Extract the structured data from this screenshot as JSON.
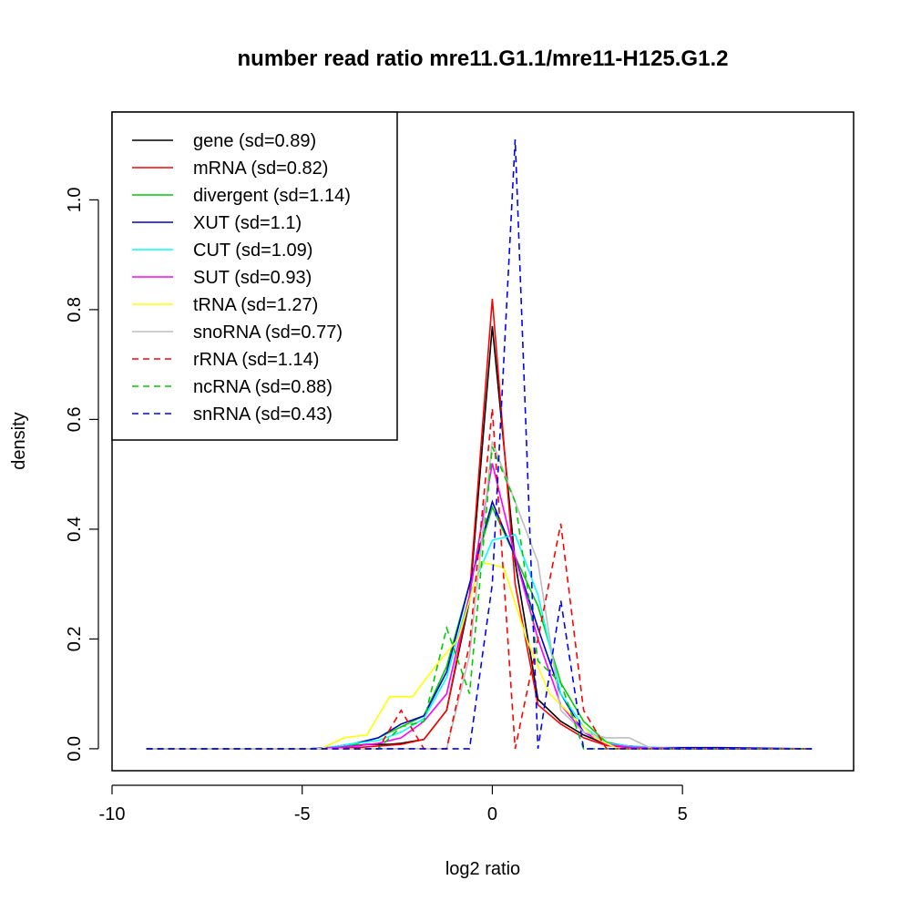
{
  "chart_data": {
    "type": "line",
    "title": "number read ratio mre11.G1.1/mre11-H125.G1.2",
    "xlabel": "log2 ratio",
    "ylabel": "density",
    "xlim": [
      -10,
      9.5
    ],
    "ylim": [
      -0.04,
      1.16
    ],
    "x_ticks": [
      -10,
      -5,
      0,
      5
    ],
    "x_tick_labels": [
      "-10",
      "-5",
      "0",
      "5"
    ],
    "y_ticks": [
      0.0,
      0.2,
      0.4,
      0.6,
      0.8,
      1.0
    ],
    "y_tick_labels": [
      "0.0",
      "0.2",
      "0.4",
      "0.6",
      "0.8",
      "1.0"
    ],
    "legend_position": "top-left",
    "series": [
      {
        "name": "gene (sd=0.89)",
        "color": "#000000",
        "dash": "solid",
        "points": [
          [
            -9.1,
            0
          ],
          [
            -4.5,
            0
          ],
          [
            -3.9,
            0.003
          ],
          [
            -3.3,
            0.008
          ],
          [
            -2.7,
            0.008
          ],
          [
            -2.4,
            0.01
          ],
          [
            -1.8,
            0.017
          ],
          [
            -1.2,
            0.07
          ],
          [
            -0.6,
            0.27
          ],
          [
            0,
            0.77
          ],
          [
            0.6,
            0.34
          ],
          [
            1.2,
            0.09
          ],
          [
            1.8,
            0.05
          ],
          [
            2.4,
            0.025
          ],
          [
            3.0,
            0.008
          ],
          [
            3.6,
            0.005
          ],
          [
            4.2,
            0.002
          ],
          [
            5.0,
            0
          ],
          [
            8.4,
            0
          ]
        ]
      },
      {
        "name": "mRNA (sd=0.82)",
        "color": "#ff0000",
        "dash": "solid",
        "points": [
          [
            -9.1,
            0
          ],
          [
            -4.5,
            0
          ],
          [
            -3.6,
            0.002
          ],
          [
            -3.0,
            0.005
          ],
          [
            -2.4,
            0.008
          ],
          [
            -1.8,
            0.017
          ],
          [
            -1.2,
            0.07
          ],
          [
            -0.6,
            0.28
          ],
          [
            0,
            0.82
          ],
          [
            0.6,
            0.3
          ],
          [
            1.2,
            0.08
          ],
          [
            1.8,
            0.045
          ],
          [
            2.4,
            0.02
          ],
          [
            3.0,
            0.006
          ],
          [
            3.6,
            0.002
          ],
          [
            5.0,
            0
          ],
          [
            8.4,
            0
          ]
        ]
      },
      {
        "name": "divergent (sd=1.14)",
        "color": "#00cc00",
        "dash": "solid",
        "points": [
          [
            -9.1,
            0
          ],
          [
            -4.8,
            0
          ],
          [
            -4.2,
            0.003
          ],
          [
            -3.6,
            0.008
          ],
          [
            -3.0,
            0.02
          ],
          [
            -2.4,
            0.04
          ],
          [
            -1.8,
            0.06
          ],
          [
            -1.2,
            0.15
          ],
          [
            -0.6,
            0.3
          ],
          [
            0,
            0.44
          ],
          [
            0.6,
            0.35
          ],
          [
            1.2,
            0.26
          ],
          [
            1.8,
            0.12
          ],
          [
            2.4,
            0.05
          ],
          [
            3.0,
            0.012
          ],
          [
            3.6,
            0.004
          ],
          [
            5.0,
            0
          ],
          [
            8.4,
            0
          ]
        ]
      },
      {
        "name": "XUT (sd=1.1)",
        "color": "#0000cc",
        "dash": "solid",
        "points": [
          [
            -9.1,
            0
          ],
          [
            -4.8,
            0
          ],
          [
            -4.2,
            0.003
          ],
          [
            -3.6,
            0.01
          ],
          [
            -3.0,
            0.02
          ],
          [
            -2.4,
            0.045
          ],
          [
            -1.8,
            0.06
          ],
          [
            -1.2,
            0.14
          ],
          [
            -0.6,
            0.3
          ],
          [
            0,
            0.45
          ],
          [
            0.6,
            0.35
          ],
          [
            1.2,
            0.22
          ],
          [
            1.8,
            0.1
          ],
          [
            2.4,
            0.03
          ],
          [
            3.0,
            0.01
          ],
          [
            3.6,
            0.005
          ],
          [
            4.2,
            0.002
          ],
          [
            6.0,
            0.002
          ],
          [
            8.4,
            0
          ]
        ]
      },
      {
        "name": "CUT (sd=1.09)",
        "color": "#00ffff",
        "dash": "solid",
        "points": [
          [
            -9.1,
            0
          ],
          [
            -4.8,
            0
          ],
          [
            -4.2,
            0.003
          ],
          [
            -3.6,
            0.01
          ],
          [
            -3.0,
            0.015
          ],
          [
            -2.4,
            0.03
          ],
          [
            -1.8,
            0.055
          ],
          [
            -1.2,
            0.13
          ],
          [
            -0.6,
            0.28
          ],
          [
            0,
            0.38
          ],
          [
            0.6,
            0.39
          ],
          [
            1.2,
            0.28
          ],
          [
            1.8,
            0.1
          ],
          [
            2.4,
            0.04
          ],
          [
            3.0,
            0.01
          ],
          [
            3.6,
            0.005
          ],
          [
            5.0,
            0
          ],
          [
            8.4,
            0
          ]
        ]
      },
      {
        "name": "SUT (sd=0.93)",
        "color": "#ff00ff",
        "dash": "solid",
        "points": [
          [
            -9.1,
            0
          ],
          [
            -4.8,
            0
          ],
          [
            -4.2,
            0.002
          ],
          [
            -3.6,
            0.005
          ],
          [
            -3.0,
            0.01
          ],
          [
            -2.4,
            0.02
          ],
          [
            -1.8,
            0.05
          ],
          [
            -1.2,
            0.1
          ],
          [
            -0.6,
            0.28
          ],
          [
            0,
            0.52
          ],
          [
            0.6,
            0.35
          ],
          [
            1.2,
            0.2
          ],
          [
            1.8,
            0.08
          ],
          [
            2.4,
            0.03
          ],
          [
            3.0,
            0.008
          ],
          [
            3.6,
            0.003
          ],
          [
            5.0,
            0
          ],
          [
            8.4,
            0
          ]
        ]
      },
      {
        "name": "tRNA (sd=1.27)",
        "color": "#ffff00",
        "dash": "solid",
        "points": [
          [
            -9.1,
            0
          ],
          [
            -4.5,
            0
          ],
          [
            -3.9,
            0.02
          ],
          [
            -3.3,
            0.025
          ],
          [
            -2.7,
            0.095
          ],
          [
            -2.1,
            0.095
          ],
          [
            -1.5,
            0.15
          ],
          [
            -0.9,
            0.2
          ],
          [
            -0.3,
            0.34
          ],
          [
            0.3,
            0.33
          ],
          [
            0.9,
            0.2
          ],
          [
            1.5,
            0.1
          ],
          [
            2.1,
            0.06
          ],
          [
            2.7,
            0.02
          ],
          [
            3.3,
            0
          ],
          [
            8.4,
            0
          ]
        ]
      },
      {
        "name": "snoRNA (sd=0.77)",
        "color": "#bebebe",
        "dash": "solid",
        "points": [
          [
            -9.1,
            0
          ],
          [
            -1.2,
            0
          ],
          [
            -0.6,
            0.17
          ],
          [
            0,
            0.56
          ],
          [
            0.6,
            0.45
          ],
          [
            1.2,
            0.34
          ],
          [
            1.8,
            0.07
          ],
          [
            2.4,
            0.03
          ],
          [
            3.0,
            0.02
          ],
          [
            3.6,
            0.02
          ],
          [
            4.2,
            0
          ],
          [
            8.4,
            0
          ]
        ]
      },
      {
        "name": "rRNA (sd=1.14)",
        "color": "#ff0000",
        "dash": "dashed",
        "points": [
          [
            -9.1,
            0
          ],
          [
            -3.0,
            0
          ],
          [
            -2.4,
            0.07
          ],
          [
            -1.8,
            0
          ],
          [
            -1.2,
            0
          ],
          [
            -0.6,
            0.19
          ],
          [
            0,
            0.62
          ],
          [
            0.6,
            0
          ],
          [
            1.2,
            0.2
          ],
          [
            1.8,
            0.41
          ],
          [
            2.4,
            0.07
          ],
          [
            3.0,
            0
          ],
          [
            8.4,
            0
          ]
        ]
      },
      {
        "name": "ncRNA (sd=0.88)",
        "color": "#00cc00",
        "dash": "dashed",
        "points": [
          [
            -9.1,
            0
          ],
          [
            -3.0,
            0
          ],
          [
            -2.4,
            0.04
          ],
          [
            -1.8,
            0.05
          ],
          [
            -1.2,
            0.22
          ],
          [
            -0.6,
            0.1
          ],
          [
            0,
            0.55
          ],
          [
            0.6,
            0.45
          ],
          [
            1.2,
            0.16
          ],
          [
            1.8,
            0.12
          ],
          [
            2.4,
            0
          ],
          [
            8.4,
            0
          ]
        ]
      },
      {
        "name": "snRNA (sd=0.43)",
        "color": "#0000ff",
        "dash": "dashed",
        "points": [
          [
            -9.1,
            0
          ],
          [
            -0.6,
            0
          ],
          [
            0,
            0.3
          ],
          [
            0.6,
            1.11
          ],
          [
            1.2,
            0
          ],
          [
            1.8,
            0.27
          ],
          [
            2.4,
            0
          ],
          [
            8.4,
            0
          ]
        ]
      }
    ]
  }
}
